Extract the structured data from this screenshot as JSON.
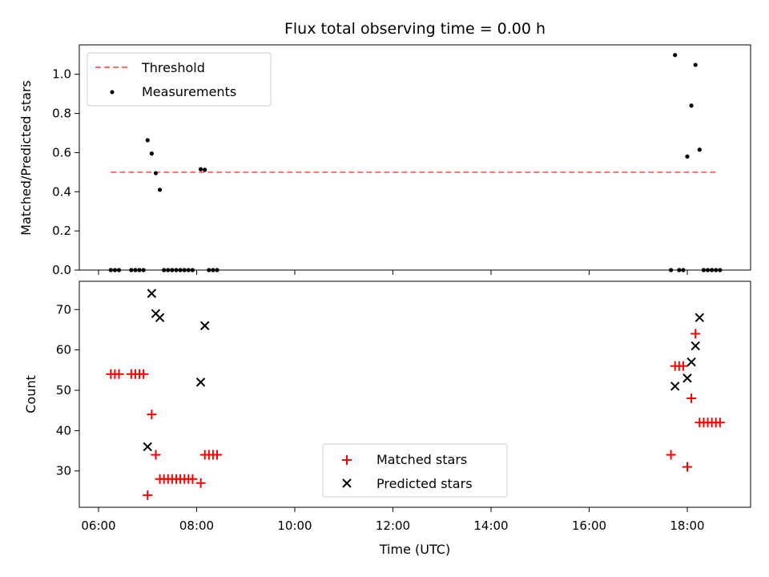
{
  "chart_data": {
    "type": "scatter",
    "title": "Flux total observing time = 0.00 h",
    "xlabel": "Time (UTC)",
    "x_ticks": [
      "06:00",
      "08:00",
      "10:00",
      "12:00",
      "14:00",
      "16:00",
      "18:00"
    ],
    "panels": [
      {
        "name": "ratio",
        "ylabel": "Matched/Predicted stars",
        "ylim": [
          0,
          1.15
        ],
        "y_ticks": [
          "0.0",
          "0.2",
          "0.4",
          "0.6",
          "0.8",
          "1.0"
        ],
        "legend_position": "upper left",
        "threshold": {
          "name": "Threshold",
          "value": 0.5,
          "x_start": "06:15",
          "x_end": "18:38",
          "color": "#ff7070"
        },
        "series": [
          {
            "name": "Measurements",
            "color": "#000000",
            "marker": "dot",
            "points": [
              [
                "06:15",
                0.0
              ],
              [
                "06:20",
                0.0
              ],
              [
                "06:25",
                0.0
              ],
              [
                "06:40",
                0.0
              ],
              [
                "06:45",
                0.0
              ],
              [
                "06:50",
                0.0
              ],
              [
                "06:55",
                0.0
              ],
              [
                "07:00",
                0.663
              ],
              [
                "07:05",
                0.595
              ],
              [
                "07:10",
                0.495
              ],
              [
                "07:15",
                0.41
              ],
              [
                "07:20",
                0.0
              ],
              [
                "07:25",
                0.0
              ],
              [
                "07:30",
                0.0
              ],
              [
                "07:35",
                0.0
              ],
              [
                "07:40",
                0.0
              ],
              [
                "07:45",
                0.0
              ],
              [
                "07:50",
                0.0
              ],
              [
                "07:55",
                0.0
              ],
              [
                "08:05",
                0.515
              ],
              [
                "08:10",
                0.512
              ],
              [
                "08:15",
                0.0
              ],
              [
                "08:20",
                0.0
              ],
              [
                "08:25",
                0.0
              ],
              [
                "17:40",
                0.0
              ],
              [
                "17:45",
                1.098
              ],
              [
                "17:50",
                0.0
              ],
              [
                "17:55",
                0.0
              ],
              [
                "18:00",
                0.58
              ],
              [
                "18:05",
                0.84
              ],
              [
                "18:10",
                1.048
              ],
              [
                "18:15",
                0.615
              ],
              [
                "18:20",
                0.0
              ],
              [
                "18:25",
                0.0
              ],
              [
                "18:30",
                0.0
              ],
              [
                "18:35",
                0.0
              ],
              [
                "18:40",
                0.0
              ]
            ]
          }
        ]
      },
      {
        "name": "count",
        "ylabel": "Count",
        "ylim": [
          21,
          77
        ],
        "y_ticks": [
          "30",
          "40",
          "50",
          "60",
          "70"
        ],
        "legend_position": "lower center",
        "series": [
          {
            "name": "Matched stars",
            "color": "#ff0000",
            "marker": "plus",
            "points": [
              [
                "06:15",
                54
              ],
              [
                "06:20",
                54
              ],
              [
                "06:25",
                54
              ],
              [
                "06:40",
                54
              ],
              [
                "06:45",
                54
              ],
              [
                "06:50",
                54
              ],
              [
                "06:55",
                54
              ],
              [
                "07:00",
                24
              ],
              [
                "07:05",
                44
              ],
              [
                "07:10",
                34
              ],
              [
                "07:15",
                28
              ],
              [
                "07:20",
                28
              ],
              [
                "07:25",
                28
              ],
              [
                "07:30",
                28
              ],
              [
                "07:35",
                28
              ],
              [
                "07:40",
                28
              ],
              [
                "07:45",
                28
              ],
              [
                "07:50",
                28
              ],
              [
                "07:55",
                28
              ],
              [
                "08:05",
                27
              ],
              [
                "08:10",
                34
              ],
              [
                "08:15",
                34
              ],
              [
                "08:20",
                34
              ],
              [
                "08:25",
                34
              ],
              [
                "17:40",
                34
              ],
              [
                "17:45",
                56
              ],
              [
                "17:50",
                56
              ],
              [
                "17:55",
                56
              ],
              [
                "18:00",
                31
              ],
              [
                "18:05",
                48
              ],
              [
                "18:10",
                64
              ],
              [
                "18:15",
                42
              ],
              [
                "18:20",
                42
              ],
              [
                "18:25",
                42
              ],
              [
                "18:30",
                42
              ],
              [
                "18:35",
                42
              ],
              [
                "18:40",
                42
              ]
            ]
          },
          {
            "name": "Predicted stars",
            "color": "#000000",
            "marker": "cross",
            "points": [
              [
                "07:00",
                36
              ],
              [
                "07:05",
                74
              ],
              [
                "07:10",
                69
              ],
              [
                "07:15",
                68
              ],
              [
                "08:05",
                52
              ],
              [
                "08:10",
                66
              ],
              [
                "17:45",
                51
              ],
              [
                "18:00",
                53
              ],
              [
                "18:05",
                57
              ],
              [
                "18:10",
                61
              ],
              [
                "18:15",
                68
              ]
            ]
          }
        ]
      }
    ]
  }
}
